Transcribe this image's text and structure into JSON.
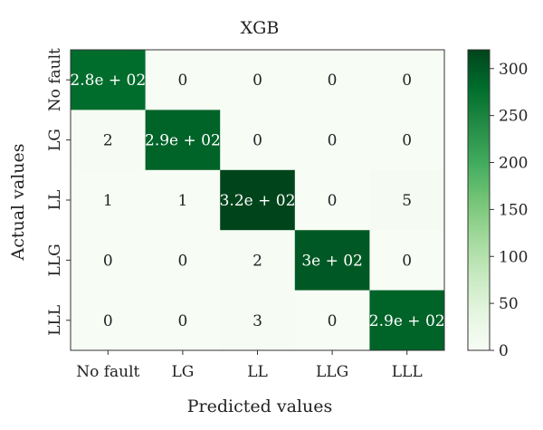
{
  "chart_data": {
    "type": "heatmap",
    "title": "XGB",
    "xlabel": "Predicted values",
    "ylabel": "Actual values",
    "x_categories": [
      "No fault",
      "LG",
      "LL",
      "LLG",
      "LLL"
    ],
    "y_categories": [
      "No fault",
      "LG",
      "LL",
      "LLG",
      "LLL"
    ],
    "values": [
      [
        280,
        0,
        0,
        0,
        0
      ],
      [
        2,
        290,
        0,
        0,
        0
      ],
      [
        1,
        1,
        320,
        0,
        5
      ],
      [
        0,
        0,
        2,
        300,
        0
      ],
      [
        0,
        0,
        3,
        0,
        290
      ]
    ],
    "cell_labels": [
      [
        "2.8e + 02",
        "0",
        "0",
        "0",
        "0"
      ],
      [
        "2",
        "2.9e + 02",
        "0",
        "0",
        "0"
      ],
      [
        "1",
        "1",
        "3.2e + 02",
        "0",
        "5"
      ],
      [
        "0",
        "0",
        "2",
        "3e + 02",
        "0"
      ],
      [
        "0",
        "0",
        "3",
        "0",
        "2.9e + 02"
      ]
    ],
    "colorbar": {
      "min": 0,
      "max": 320,
      "ticks": [
        0,
        50,
        100,
        150,
        200,
        250,
        300
      ],
      "tick_labels": [
        "0",
        "50",
        "100",
        "150",
        "200",
        "250",
        "300"
      ]
    },
    "colormap": {
      "low": "#f7fcf5",
      "high": "#00441b",
      "stops": [
        "#f7fcf5",
        "#e5f5e0",
        "#c7e9c0",
        "#a1d99b",
        "#74c476",
        "#41ab5d",
        "#238b45",
        "#006d2c",
        "#00441b"
      ]
    },
    "grid": false
  }
}
